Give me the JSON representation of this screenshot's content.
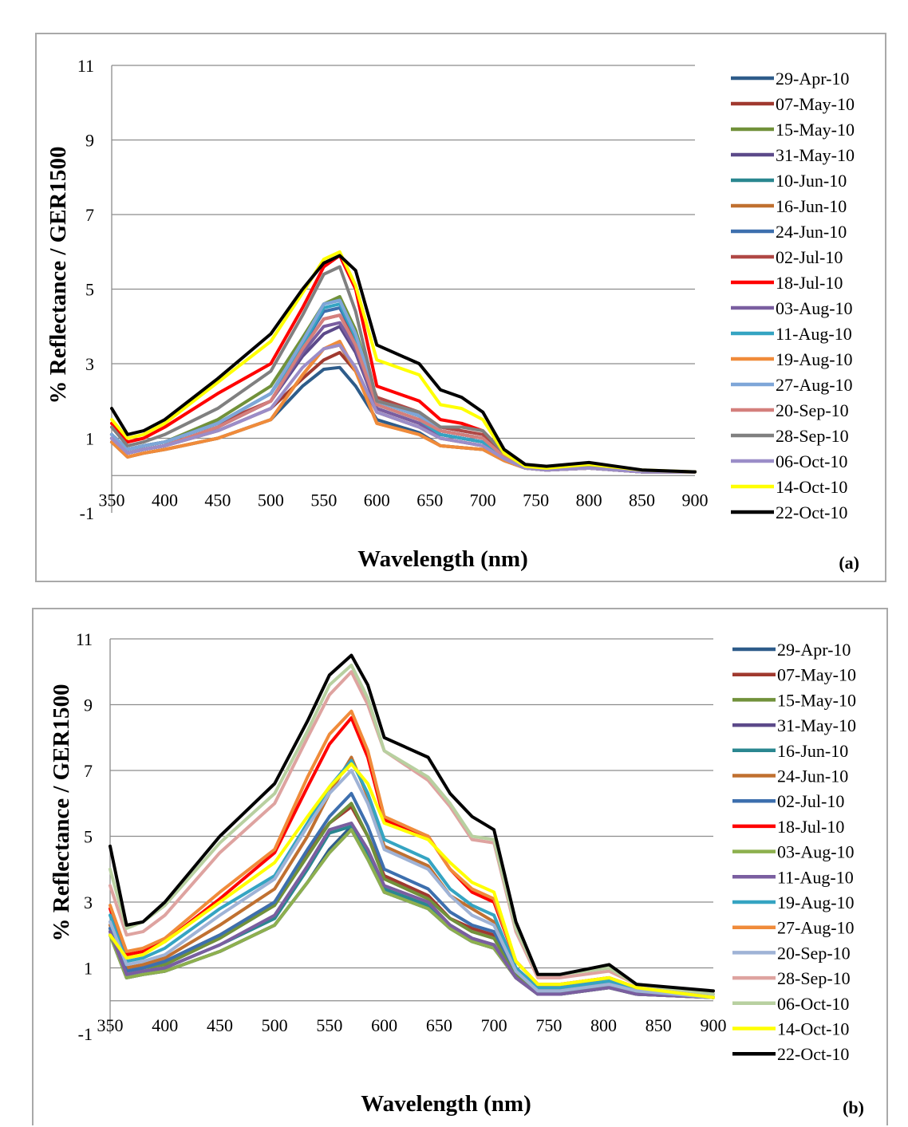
{
  "chart_data": [
    {
      "type": "line",
      "panel_label": "(a)",
      "xlabel": "Wavelength (nm)",
      "ylabel": "% Reflectance / GER1500",
      "xlim": [
        350,
        900
      ],
      "ylim": [
        -1,
        11
      ],
      "x_ticks": [
        350,
        400,
        450,
        500,
        550,
        600,
        650,
        700,
        750,
        800,
        850,
        900
      ],
      "y_ticks": [
        -1,
        1,
        3,
        5,
        7,
        9,
        11
      ],
      "grid": "horizontal",
      "legend_position": "right",
      "x": [
        350,
        365,
        380,
        400,
        450,
        500,
        530,
        550,
        565,
        580,
        600,
        640,
        660,
        680,
        700,
        720,
        740,
        760,
        800,
        850,
        900
      ],
      "series": [
        {
          "name": "29-Apr-10",
          "color": "#2e5c8a",
          "values": [
            0.9,
            0.5,
            0.6,
            0.7,
            1.0,
            1.5,
            2.4,
            2.85,
            2.9,
            2.4,
            1.5,
            1.15,
            0.8,
            0.75,
            0.7,
            0.4,
            0.2,
            0.15,
            0.2,
            0.1,
            0.1
          ]
        },
        {
          "name": "07-May-10",
          "color": "#a0392f",
          "values": [
            1.0,
            0.6,
            0.7,
            0.8,
            1.2,
            1.8,
            2.6,
            3.1,
            3.3,
            2.8,
            1.7,
            1.3,
            1.0,
            0.9,
            0.8,
            0.45,
            0.2,
            0.15,
            0.2,
            0.1,
            0.1
          ]
        },
        {
          "name": "15-May-10",
          "color": "#71913a",
          "values": [
            1.1,
            0.7,
            0.8,
            0.9,
            1.5,
            2.4,
            3.7,
            4.6,
            4.8,
            3.9,
            2.0,
            1.6,
            1.2,
            1.1,
            1.0,
            0.5,
            0.2,
            0.15,
            0.2,
            0.1,
            0.1
          ]
        },
        {
          "name": "31-May-10",
          "color": "#5c4a8a",
          "values": [
            1.0,
            0.6,
            0.7,
            0.8,
            1.3,
            2.0,
            3.2,
            3.8,
            4.0,
            3.3,
            1.8,
            1.4,
            1.1,
            1.0,
            0.9,
            0.45,
            0.2,
            0.15,
            0.2,
            0.1,
            0.1
          ]
        },
        {
          "name": "10-Jun-10",
          "color": "#2a8790",
          "values": [
            1.1,
            0.7,
            0.8,
            0.9,
            1.4,
            2.2,
            3.6,
            4.6,
            4.7,
            3.8,
            2.0,
            1.6,
            1.2,
            1.1,
            1.0,
            0.5,
            0.2,
            0.15,
            0.2,
            0.1,
            0.1
          ]
        },
        {
          "name": "16-Jun-10",
          "color": "#c07030",
          "values": [
            0.9,
            0.5,
            0.6,
            0.7,
            1.0,
            1.5,
            2.7,
            3.4,
            3.5,
            2.8,
            1.4,
            1.1,
            0.8,
            0.75,
            0.7,
            0.4,
            0.2,
            0.15,
            0.2,
            0.1,
            0.1
          ]
        },
        {
          "name": "24-Jun-10",
          "color": "#3d6fae",
          "values": [
            1.1,
            0.7,
            0.8,
            0.9,
            1.4,
            2.2,
            3.5,
            4.4,
            4.5,
            3.7,
            2.0,
            1.6,
            1.2,
            1.1,
            1.0,
            0.5,
            0.2,
            0.15,
            0.2,
            0.1,
            0.1
          ]
        },
        {
          "name": "02-Jul-10",
          "color": "#b04845",
          "values": [
            1.1,
            0.7,
            0.8,
            0.9,
            1.4,
            2.0,
            3.4,
            4.2,
            4.3,
            3.6,
            2.1,
            1.7,
            1.3,
            1.2,
            1.1,
            0.5,
            0.2,
            0.15,
            0.2,
            0.1,
            0.1
          ]
        },
        {
          "name": "18-Jul-10",
          "color": "#ff0000",
          "values": [
            1.4,
            0.9,
            1.0,
            1.3,
            2.2,
            3.0,
            4.5,
            5.6,
            5.9,
            5.0,
            2.4,
            2.0,
            1.5,
            1.4,
            1.2,
            0.6,
            0.25,
            0.2,
            0.25,
            0.1,
            0.1
          ]
        },
        {
          "name": "03-Aug-10",
          "color": "#7a5ea0",
          "values": [
            1.0,
            0.6,
            0.7,
            0.8,
            1.3,
            2.0,
            3.3,
            4.0,
            4.1,
            3.4,
            1.8,
            1.4,
            1.1,
            1.0,
            0.9,
            0.45,
            0.2,
            0.15,
            0.2,
            0.1,
            0.1
          ]
        },
        {
          "name": "11-Aug-10",
          "color": "#35a4c2",
          "values": [
            1.1,
            0.7,
            0.8,
            0.9,
            1.4,
            2.2,
            3.5,
            4.5,
            4.6,
            3.7,
            1.9,
            1.5,
            1.1,
            1.0,
            0.9,
            0.45,
            0.2,
            0.15,
            0.2,
            0.1,
            0.1
          ]
        },
        {
          "name": "19-Aug-10",
          "color": "#f08b3a",
          "values": [
            0.9,
            0.5,
            0.6,
            0.7,
            1.0,
            1.5,
            2.7,
            3.4,
            3.6,
            2.8,
            1.4,
            1.1,
            0.8,
            0.75,
            0.7,
            0.4,
            0.2,
            0.15,
            0.2,
            0.1,
            0.1
          ]
        },
        {
          "name": "27-Aug-10",
          "color": "#7ea6d8",
          "values": [
            1.1,
            0.7,
            0.8,
            0.9,
            1.4,
            2.2,
            3.6,
            4.6,
            4.7,
            3.8,
            2.0,
            1.6,
            1.2,
            1.1,
            1.0,
            0.5,
            0.2,
            0.15,
            0.2,
            0.1,
            0.1
          ]
        },
        {
          "name": "20-Sep-10",
          "color": "#d47f7c",
          "values": [
            1.0,
            0.6,
            0.7,
            0.8,
            1.3,
            2.0,
            3.4,
            4.2,
            4.3,
            3.5,
            1.9,
            1.5,
            1.2,
            1.1,
            1.0,
            0.5,
            0.2,
            0.15,
            0.2,
            0.1,
            0.1
          ]
        },
        {
          "name": "28-Sep-10",
          "color": "#808080",
          "values": [
            1.3,
            0.8,
            0.9,
            1.1,
            1.8,
            2.8,
            4.3,
            5.4,
            5.6,
            4.4,
            2.0,
            1.7,
            1.3,
            1.3,
            1.2,
            0.6,
            0.25,
            0.2,
            0.25,
            0.1,
            0.1
          ]
        },
        {
          "name": "06-Oct-10",
          "color": "#9b8dc8",
          "values": [
            1.0,
            0.6,
            0.7,
            0.8,
            1.2,
            1.8,
            2.9,
            3.4,
            3.5,
            2.9,
            1.7,
            1.3,
            1.0,
            0.9,
            0.8,
            0.45,
            0.2,
            0.15,
            0.2,
            0.1,
            0.1
          ]
        },
        {
          "name": "14-Oct-10",
          "color": "#ffff00",
          "values": [
            1.5,
            1.0,
            1.1,
            1.4,
            2.5,
            3.6,
            4.9,
            5.8,
            6.0,
            5.1,
            3.1,
            2.7,
            1.9,
            1.8,
            1.5,
            0.6,
            0.25,
            0.2,
            0.3,
            0.15,
            0.1
          ]
        },
        {
          "name": "22-Oct-10",
          "color": "#000000",
          "values": [
            1.8,
            1.1,
            1.2,
            1.5,
            2.6,
            3.8,
            5.0,
            5.7,
            5.9,
            5.5,
            3.5,
            3.0,
            2.3,
            2.1,
            1.7,
            0.7,
            0.3,
            0.25,
            0.35,
            0.15,
            0.1
          ]
        }
      ]
    },
    {
      "type": "line",
      "panel_label": "(b)",
      "xlabel": "Wavelength (nm)",
      "ylabel": "% Reflectance / GER1500",
      "xlim": [
        350,
        900
      ],
      "ylim": [
        -1,
        11
      ],
      "x_ticks": [
        350,
        400,
        450,
        500,
        550,
        600,
        650,
        700,
        750,
        800,
        850,
        900
      ],
      "y_ticks": [
        -1,
        1,
        3,
        5,
        7,
        9,
        11
      ],
      "grid": "horizontal",
      "legend_position": "right",
      "x": [
        350,
        365,
        380,
        400,
        450,
        500,
        530,
        550,
        570,
        585,
        600,
        640,
        660,
        680,
        700,
        720,
        740,
        760,
        805,
        830,
        900
      ],
      "series": [
        {
          "name": "29-Apr-10",
          "color": "#2e5c8a",
          "values": [
            2.0,
            0.7,
            0.8,
            0.9,
            1.5,
            2.3,
            3.6,
            4.6,
            5.3,
            4.4,
            3.3,
            2.8,
            2.2,
            1.8,
            1.6,
            0.7,
            0.2,
            0.2,
            0.4,
            0.2,
            0.1
          ]
        },
        {
          "name": "07-May-10",
          "color": "#a0392f",
          "values": [
            2.2,
            0.9,
            1.0,
            1.2,
            2.0,
            3.0,
            4.5,
            5.4,
            5.9,
            5.0,
            3.8,
            3.2,
            2.5,
            2.2,
            2.0,
            0.9,
            0.3,
            0.3,
            0.5,
            0.3,
            0.1
          ]
        },
        {
          "name": "15-May-10",
          "color": "#71913a",
          "values": [
            2.2,
            0.9,
            1.0,
            1.1,
            1.9,
            2.9,
            4.4,
            5.4,
            6.0,
            5.0,
            3.7,
            3.1,
            2.5,
            2.1,
            1.9,
            0.8,
            0.3,
            0.3,
            0.4,
            0.2,
            0.1
          ]
        },
        {
          "name": "31-May-10",
          "color": "#5c4a8a",
          "values": [
            2.0,
            0.7,
            0.8,
            0.9,
            1.5,
            2.3,
            3.6,
            4.5,
            5.2,
            4.3,
            3.3,
            2.8,
            2.2,
            1.8,
            1.6,
            0.7,
            0.2,
            0.2,
            0.4,
            0.2,
            0.1
          ]
        },
        {
          "name": "16-Jun-10",
          "color": "#2a8790",
          "values": [
            2.1,
            0.8,
            0.9,
            1.0,
            1.7,
            2.5,
            4.0,
            5.1,
            5.3,
            4.5,
            3.4,
            2.9,
            2.3,
            1.9,
            1.7,
            0.7,
            0.2,
            0.2,
            0.4,
            0.2,
            0.1
          ]
        },
        {
          "name": "24-Jun-10",
          "color": "#c07030",
          "values": [
            2.3,
            1.0,
            1.1,
            1.3,
            2.3,
            3.4,
            5.0,
            6.3,
            7.4,
            6.2,
            4.7,
            4.1,
            3.2,
            2.8,
            2.4,
            1.0,
            0.4,
            0.4,
            0.6,
            0.3,
            0.1
          ]
        },
        {
          "name": "02-Jul-10",
          "color": "#3d6fae",
          "values": [
            2.2,
            0.9,
            1.0,
            1.2,
            2.0,
            3.0,
            4.6,
            5.6,
            6.3,
            5.3,
            4.0,
            3.4,
            2.7,
            2.3,
            2.1,
            0.9,
            0.3,
            0.3,
            0.5,
            0.3,
            0.1
          ]
        },
        {
          "name": "18-Jul-10",
          "color": "#ff0000",
          "values": [
            2.8,
            1.4,
            1.5,
            1.8,
            3.1,
            4.5,
            6.5,
            7.8,
            8.6,
            7.4,
            5.5,
            5.0,
            4.0,
            3.3,
            3.0,
            1.2,
            0.5,
            0.5,
            0.7,
            0.4,
            0.1
          ]
        },
        {
          "name": "03-Aug-10",
          "color": "#8db04e",
          "values": [
            2.0,
            0.7,
            0.8,
            0.9,
            1.5,
            2.3,
            3.6,
            4.5,
            5.2,
            4.3,
            3.3,
            2.8,
            2.2,
            1.8,
            1.6,
            0.7,
            0.2,
            0.2,
            0.4,
            0.2,
            0.1
          ]
        },
        {
          "name": "11-Aug-10",
          "color": "#7a5ea0",
          "values": [
            2.1,
            0.8,
            0.9,
            1.0,
            1.7,
            2.6,
            4.1,
            5.2,
            5.4,
            4.6,
            3.5,
            3.0,
            2.3,
            1.9,
            1.7,
            0.7,
            0.2,
            0.2,
            0.4,
            0.2,
            0.1
          ]
        },
        {
          "name": "19-Aug-10",
          "color": "#35a4c2",
          "values": [
            2.6,
            1.2,
            1.3,
            1.6,
            2.8,
            3.8,
            5.4,
            6.5,
            7.3,
            6.3,
            4.9,
            4.3,
            3.4,
            2.9,
            2.6,
            1.0,
            0.4,
            0.4,
            0.6,
            0.3,
            0.1
          ]
        },
        {
          "name": "27-Aug-10",
          "color": "#f08b3a",
          "values": [
            2.9,
            1.5,
            1.6,
            1.9,
            3.3,
            4.6,
            6.8,
            8.1,
            8.8,
            7.6,
            5.6,
            5.0,
            4.0,
            3.4,
            3.1,
            1.2,
            0.5,
            0.5,
            0.7,
            0.4,
            0.1
          ]
        },
        {
          "name": "20-Sep-10",
          "color": "#9fb3d6",
          "values": [
            2.4,
            1.1,
            1.2,
            1.4,
            2.6,
            3.7,
            5.3,
            6.3,
            7.0,
            6.0,
            4.6,
            4.0,
            3.2,
            2.6,
            2.3,
            0.9,
            0.3,
            0.3,
            0.5,
            0.3,
            0.1
          ]
        },
        {
          "name": "28-Sep-10",
          "color": "#dea3a0",
          "values": [
            3.5,
            2.0,
            2.1,
            2.6,
            4.5,
            6.0,
            8.0,
            9.3,
            10.0,
            9.0,
            7.6,
            6.7,
            5.9,
            4.9,
            4.8,
            2.1,
            0.7,
            0.7,
            0.9,
            0.5,
            0.2
          ]
        },
        {
          "name": "06-Oct-10",
          "color": "#b8d0a0",
          "values": [
            4.0,
            2.2,
            2.4,
            2.9,
            4.8,
            6.3,
            8.2,
            9.6,
            10.2,
            9.2,
            7.6,
            6.8,
            6.0,
            5.0,
            4.9,
            2.2,
            0.8,
            0.8,
            1.0,
            0.5,
            0.2
          ]
        },
        {
          "name": "14-Oct-10",
          "color": "#ffff00",
          "values": [
            2.0,
            1.3,
            1.4,
            1.8,
            3.0,
            4.2,
            5.6,
            6.5,
            7.2,
            6.6,
            5.4,
            4.9,
            4.2,
            3.6,
            3.3,
            1.2,
            0.5,
            0.5,
            0.7,
            0.4,
            0.1
          ]
        },
        {
          "name": "22-Oct-10",
          "color": "#000000",
          "values": [
            4.7,
            2.3,
            2.4,
            3.0,
            5.0,
            6.6,
            8.5,
            9.9,
            10.5,
            9.6,
            8.0,
            7.4,
            6.3,
            5.6,
            5.2,
            2.4,
            0.8,
            0.8,
            1.1,
            0.5,
            0.3
          ]
        }
      ]
    }
  ]
}
